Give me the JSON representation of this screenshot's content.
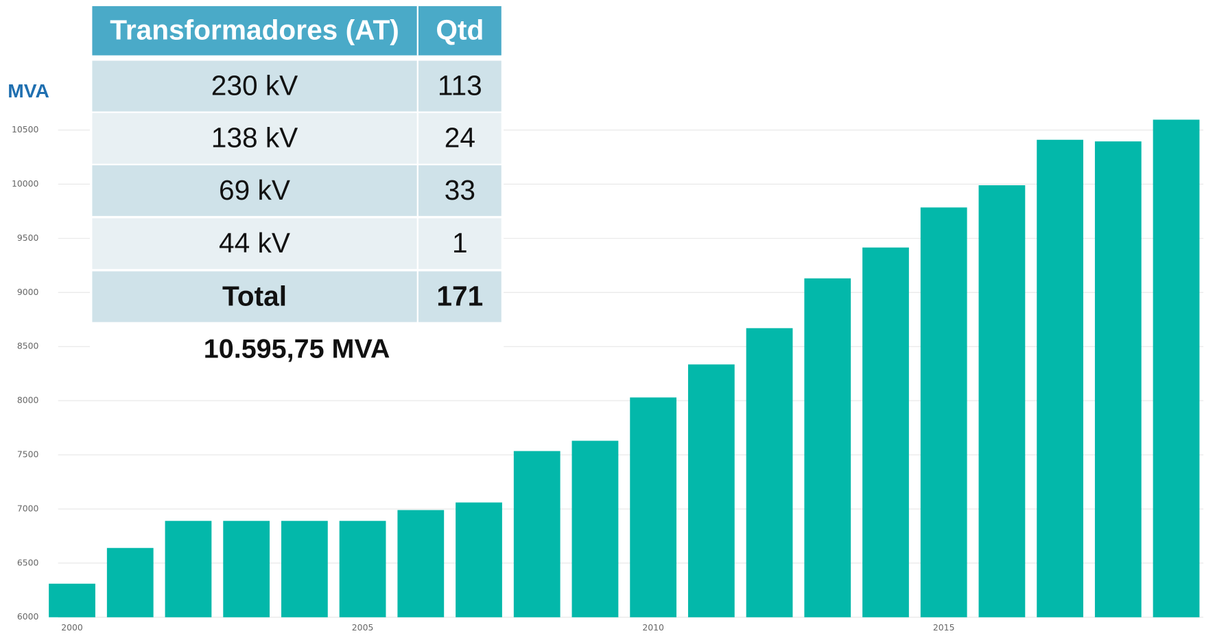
{
  "chart_data": {
    "type": "bar",
    "y_label": "MVA",
    "categories": [
      "2000",
      null,
      null,
      null,
      null,
      "2005",
      null,
      null,
      null,
      null,
      "2010",
      null,
      null,
      null,
      null,
      "2015",
      null,
      null,
      null,
      null
    ],
    "values": [
      6310,
      6640,
      6890,
      6890,
      6890,
      6890,
      6990,
      7060,
      7535,
      7630,
      8030,
      8335,
      8670,
      9130,
      9415,
      9785,
      9990,
      10410,
      10395,
      10595.75
    ],
    "color": "#03b8aa",
    "ylim": [
      6000,
      10700
    ],
    "yticks": [
      6000,
      6500,
      7000,
      7500,
      8000,
      8500,
      9000,
      9500,
      10000,
      10500
    ],
    "grid": true
  },
  "table": {
    "header": [
      "Transformadores (AT)",
      "Qtd"
    ],
    "rows": [
      [
        "230 kV",
        "113"
      ],
      [
        "138 kV",
        "24"
      ],
      [
        "69 kV",
        "33"
      ],
      [
        "44 kV",
        "1"
      ],
      [
        "Total",
        "171"
      ]
    ],
    "total_capacity": "10.595,75 MVA"
  }
}
